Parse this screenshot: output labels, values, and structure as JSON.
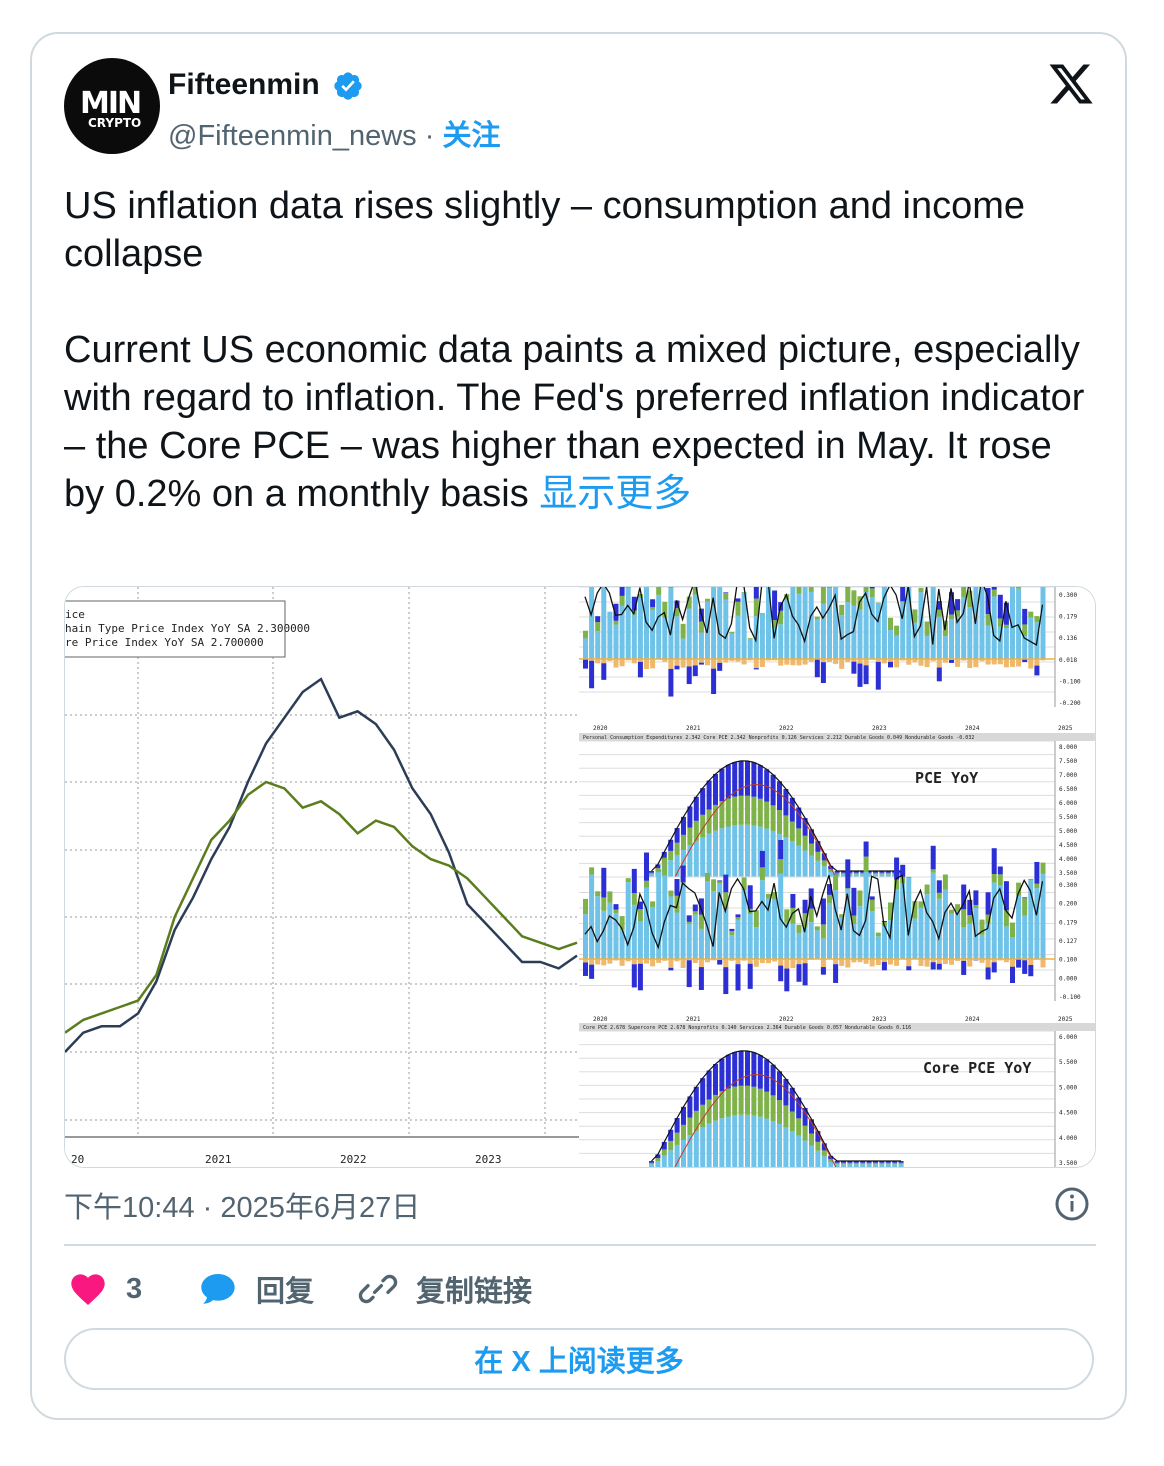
{
  "author": {
    "name": "Fifteenmin",
    "handle": "@Fifteenmin_news",
    "separator": "·",
    "follow_label": "关注",
    "avatar_text_top": "MIN",
    "avatar_text_bottom": "CRYPTO"
  },
  "post": {
    "headline": "US inflation data rises slightly – consumption and income collapse",
    "body": "Current US economic data paints a mixed picture, especially with regard to inflation. The Fed's preferred inflation indicator – the Core PCE – was higher than expected in May. It rose by 0.2% on a monthly basis ",
    "show_more": "显示更多",
    "timestamp": "下午10:44 · 2025年6月27日"
  },
  "actions": {
    "like_count": "3",
    "reply_label": "回复",
    "copy_link_label": "复制链接",
    "read_more_label": "在 X 上阅读更多"
  },
  "colors": {
    "accent": "#1d9bf0",
    "like": "#f91880",
    "text_secondary": "#536471",
    "border": "#cfd9de"
  },
  "chart_data": [
    {
      "type": "line",
      "legend": [
        "ice",
        "hain Type Price Index YoY SA 2.300000",
        "re Price Index YoY SA          2.700000"
      ],
      "x_ticks": [
        "20",
        "2021",
        "2022",
        "2023"
      ],
      "series": [
        {
          "color": "#2c3e57",
          "values": [
            1.2,
            1.5,
            1.6,
            1.6,
            1.8,
            2.3,
            3.1,
            3.6,
            4.2,
            4.7,
            5.4,
            6.0,
            6.4,
            6.8,
            7.0,
            6.4,
            6.5,
            6.3,
            5.9,
            5.3,
            4.9,
            4.3,
            3.5,
            3.2,
            2.9,
            2.6,
            2.6,
            2.5,
            2.7
          ]
        },
        {
          "color": "#5b7d1e",
          "values": [
            1.5,
            1.7,
            1.8,
            1.9,
            2.0,
            2.4,
            3.3,
            3.9,
            4.5,
            4.8,
            5.2,
            5.4,
            5.3,
            5.0,
            5.1,
            4.9,
            4.6,
            4.8,
            4.7,
            4.4,
            4.2,
            4.1,
            3.9,
            3.6,
            3.3,
            3.0,
            2.9,
            2.8,
            2.9
          ]
        }
      ]
    },
    {
      "type": "bar",
      "title": "",
      "legend": [
        "Personal Consumption Expenditures 2.342",
        "Core PCE 2.342",
        "Nonprofits 0.126",
        "Services 2.212",
        "Durable Goods 0.049",
        "Nondurable Goods -0.032"
      ],
      "x_ticks": [
        "2020",
        "2021",
        "2022",
        "2023",
        "2024",
        "2025"
      ],
      "y_ticks": [
        "0.300",
        "0.179",
        "0.136",
        "0.018",
        "-0.100",
        "-0.200"
      ]
    },
    {
      "type": "bar",
      "title": "PCE YoY",
      "y_ticks": [
        "8.000",
        "7.500",
        "7.000",
        "6.500",
        "6.000",
        "5.500",
        "5.000",
        "4.500",
        "4.000",
        "3.500"
      ]
    },
    {
      "type": "bar",
      "title": "",
      "legend": [
        "Core PCE 2.678",
        "Supercore PCE 2.678",
        "Nonprofits 0.140",
        "Services 2.364",
        "Durable Goods 0.057",
        "Nondurable Goods 0.116"
      ],
      "x_ticks": [
        "2020",
        "2021",
        "2022",
        "2023",
        "2024",
        "2025"
      ],
      "y_ticks": [
        "0.300",
        "0.200",
        "0.179",
        "0.127",
        "0.100",
        "0.000",
        "-0.100"
      ]
    },
    {
      "type": "bar",
      "title": "Core PCE YoY",
      "y_ticks": [
        "6.000",
        "5.500",
        "5.000",
        "4.500",
        "4.000",
        "3.500"
      ]
    }
  ]
}
